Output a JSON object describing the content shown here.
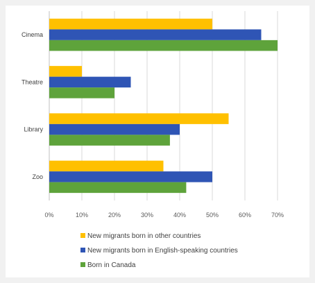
{
  "chart_data": {
    "type": "bar",
    "orientation": "horizontal",
    "categories": [
      "Cinema",
      "Theatre",
      "Library",
      "Zoo"
    ],
    "series": [
      {
        "name": "New migrants born in other countries",
        "color": "#ffc000",
        "values": [
          50,
          10,
          55,
          35
        ]
      },
      {
        "name": "New migrants born in English-speaking countries",
        "color": "#2f55b5",
        "values": [
          65,
          25,
          40,
          50
        ]
      },
      {
        "name": "Born in Canada",
        "color": "#5ea33b",
        "values": [
          70,
          20,
          37,
          42
        ]
      }
    ],
    "xlim": [
      0,
      70
    ],
    "xticks": [
      0,
      10,
      20,
      30,
      40,
      50,
      60,
      70
    ],
    "xtick_labels": [
      "0%",
      "10%",
      "20%",
      "30%",
      "40%",
      "50%",
      "60%",
      "70%"
    ],
    "grid": "vertical",
    "legend_position": "bottom"
  }
}
